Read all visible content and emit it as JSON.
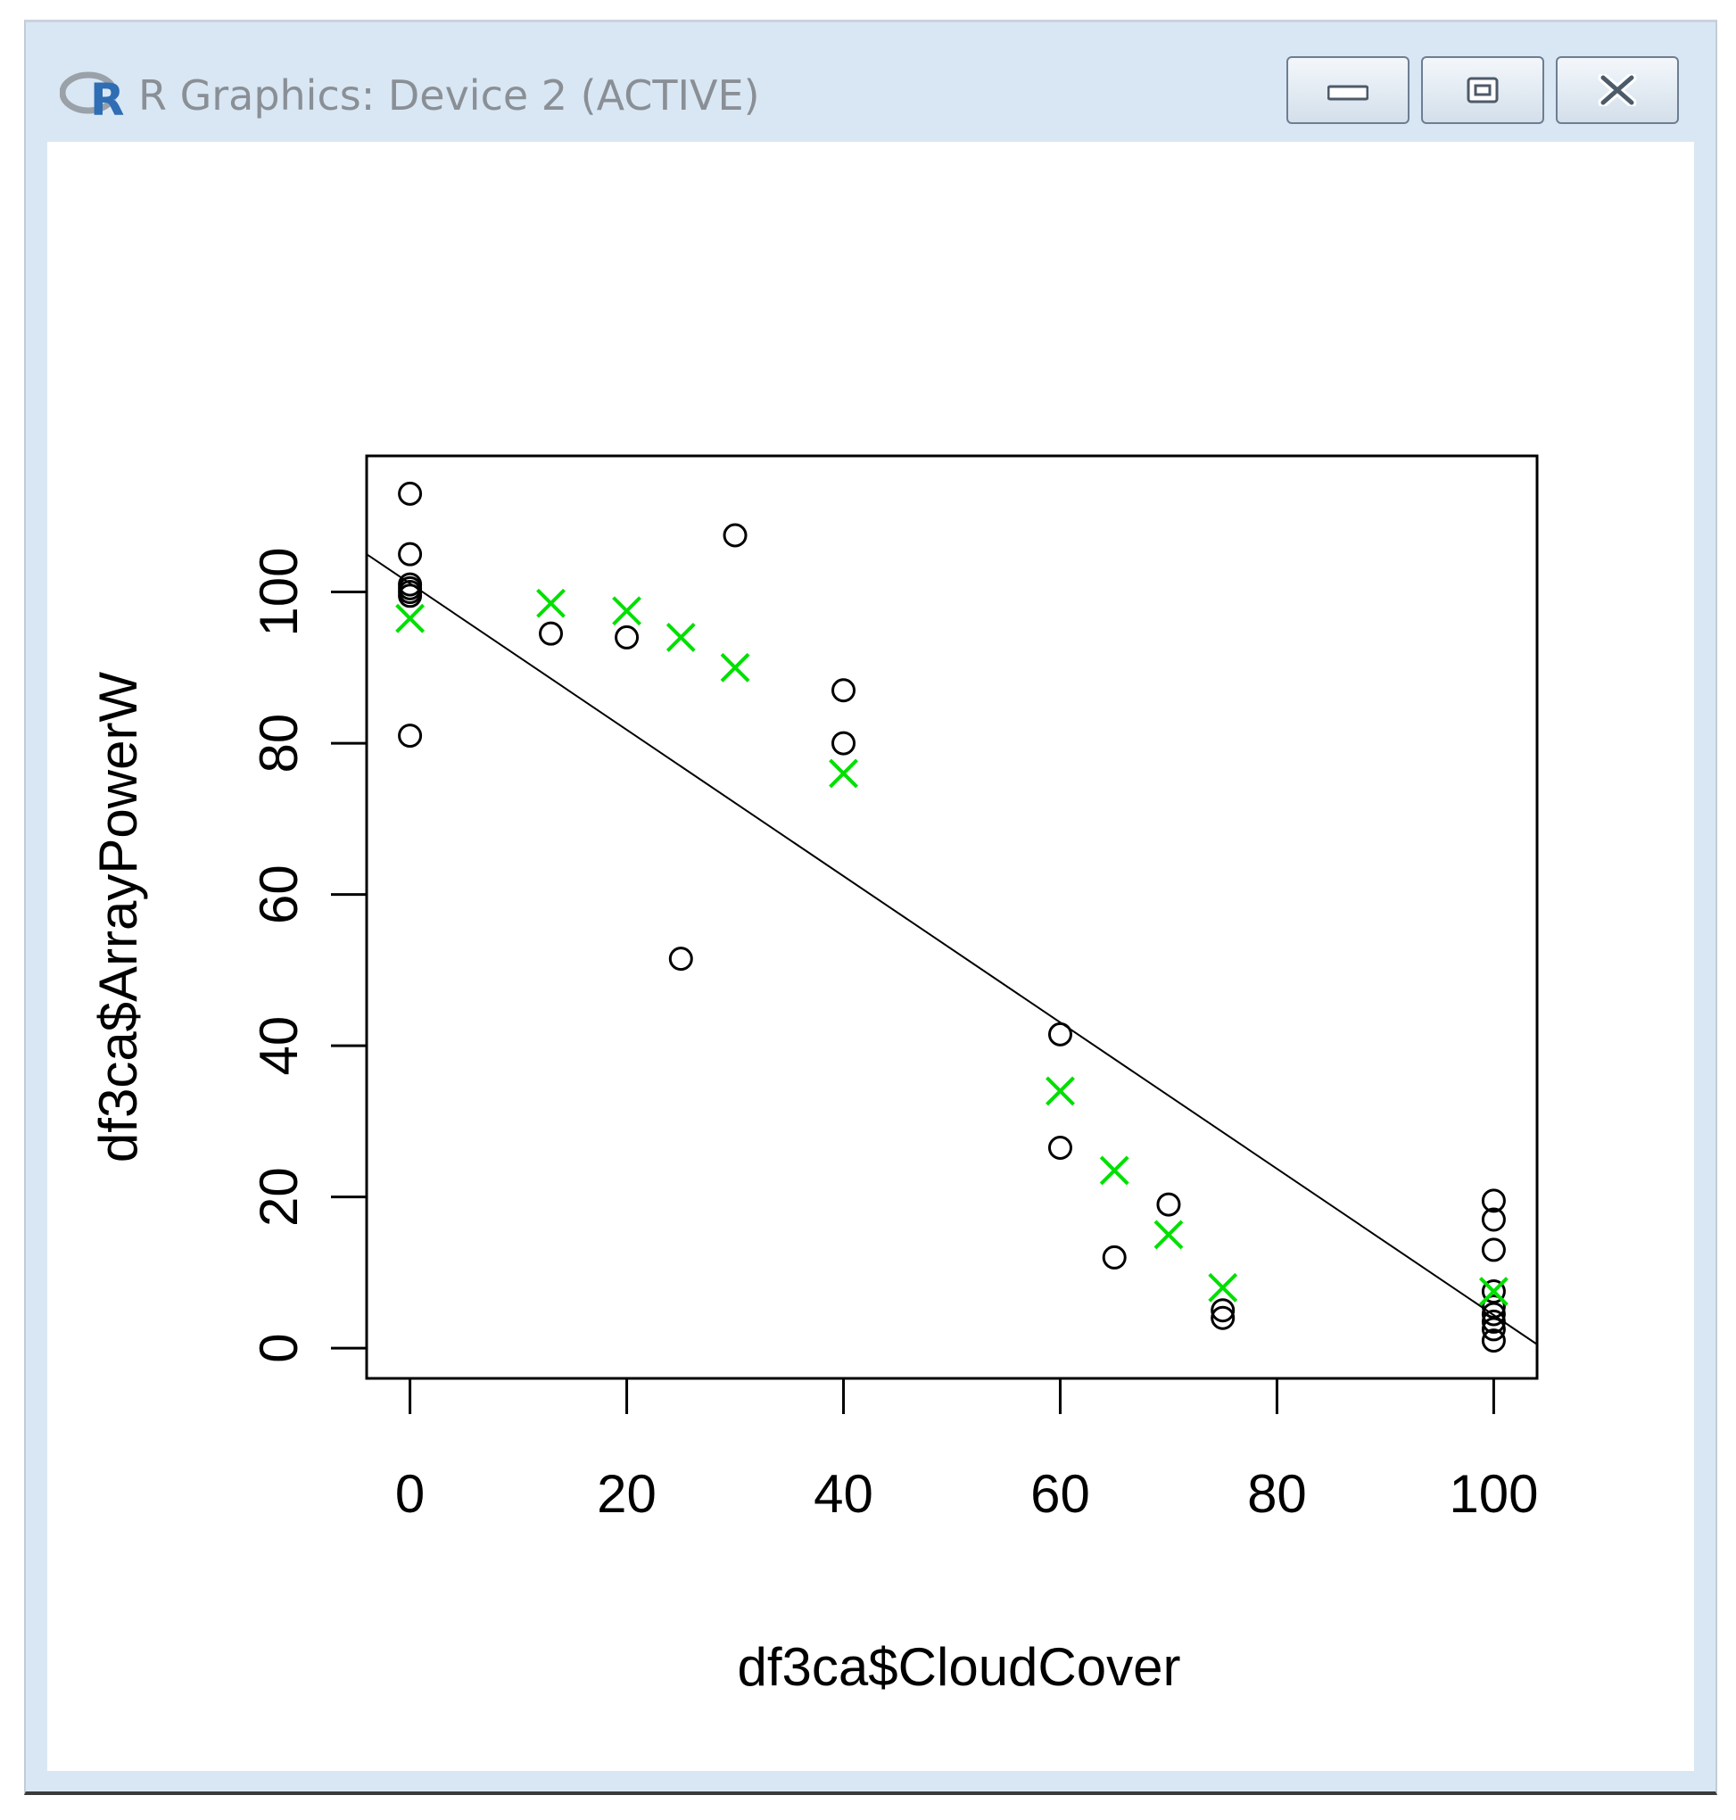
{
  "window": {
    "title": "R Graphics: Device 2 (ACTIVE)",
    "buttons": {
      "minimize_icon": "minimize-icon",
      "maximize_icon": "restore-icon",
      "close_icon": "close-icon"
    },
    "app_icon": "r-logo-icon"
  },
  "chart_data": {
    "type": "scatter",
    "title": "",
    "xlabel": "df3ca$CloudCover",
    "ylabel": "df3ca$ArrayPowerW",
    "xlim": [
      -4,
      104
    ],
    "ylim": [
      -4,
      118
    ],
    "xticks": [
      0,
      20,
      40,
      60,
      80,
      100
    ],
    "yticks": [
      0,
      20,
      40,
      60,
      80,
      100
    ],
    "series": [
      {
        "marker": "circle",
        "color": "#000000",
        "points": [
          [
            0,
            113
          ],
          [
            0,
            105
          ],
          [
            0,
            101
          ],
          [
            0,
            100
          ],
          [
            0,
            100.5
          ],
          [
            0,
            99.5
          ],
          [
            0,
            81
          ],
          [
            13,
            94.5
          ],
          [
            20,
            94
          ],
          [
            25,
            51.5
          ],
          [
            30,
            107.5
          ],
          [
            40,
            87
          ],
          [
            40,
            80
          ],
          [
            60,
            41.5
          ],
          [
            60,
            26.5
          ],
          [
            65,
            12
          ],
          [
            70,
            19
          ],
          [
            75,
            4
          ],
          [
            75,
            5
          ],
          [
            100,
            19.5
          ],
          [
            100,
            17
          ],
          [
            100,
            13
          ],
          [
            100,
            7.5
          ],
          [
            100,
            5.5
          ],
          [
            100,
            4.5
          ],
          [
            100,
            3.5
          ],
          [
            100,
            2.5
          ],
          [
            100,
            1
          ]
        ]
      },
      {
        "marker": "cross",
        "color": "#00e000",
        "points": [
          [
            0,
            96.5
          ],
          [
            13,
            98.5
          ],
          [
            20,
            97.5
          ],
          [
            25,
            94
          ],
          [
            30,
            90
          ],
          [
            40,
            76
          ],
          [
            60,
            34
          ],
          [
            65,
            23.5
          ],
          [
            70,
            15
          ],
          [
            75,
            8
          ],
          [
            100,
            7.5
          ]
        ]
      }
    ],
    "regression_line": {
      "color": "#000000",
      "from": [
        -4,
        105
      ],
      "to": [
        104,
        0.5
      ]
    }
  }
}
